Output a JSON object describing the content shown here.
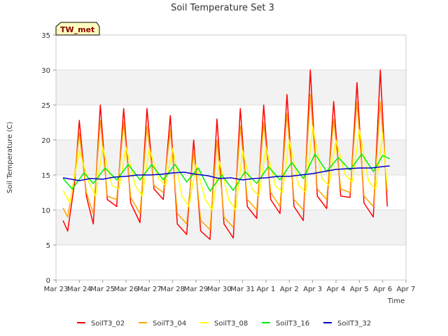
{
  "chart_data": {
    "type": "line",
    "title": "Soil Temperature Set 3",
    "xlabel": "Time",
    "ylabel": "Soil Temperature (C)",
    "ylim": [
      0,
      35
    ],
    "yticks": [
      0,
      5,
      10,
      15,
      20,
      25,
      30,
      35
    ],
    "xlim": [
      0,
      15
    ],
    "xticks": [
      {
        "x": 0,
        "label": "Mar 23"
      },
      {
        "x": 1,
        "label": "Mar 24"
      },
      {
        "x": 2,
        "label": "Mar 25"
      },
      {
        "x": 3,
        "label": "Mar 26"
      },
      {
        "x": 4,
        "label": "Mar 27"
      },
      {
        "x": 5,
        "label": "Mar 28"
      },
      {
        "x": 6,
        "label": "Mar 29"
      },
      {
        "x": 7,
        "label": "Mar 30"
      },
      {
        "x": 8,
        "label": "Mar 31"
      },
      {
        "x": 9,
        "label": "Apr 1"
      },
      {
        "x": 10,
        "label": "Apr 2"
      },
      {
        "x": 11,
        "label": "Apr 3"
      },
      {
        "x": 12,
        "label": "Apr 4"
      },
      {
        "x": 13,
        "label": "Apr 5"
      },
      {
        "x": 14,
        "label": "Apr 6"
      },
      {
        "x": 15,
        "label": "Apr 7"
      }
    ],
    "grid": "horizontal bands",
    "legend_position": "bottom",
    "annotation": "TW_met",
    "series": [
      {
        "name": "SoilT3_02",
        "color": "#ff0000",
        "x": [
          0.3,
          0.5,
          0.8,
          1.0,
          1.3,
          1.6,
          1.9,
          2.2,
          2.6,
          2.9,
          3.2,
          3.6,
          3.9,
          4.2,
          4.6,
          4.9,
          5.2,
          5.6,
          5.9,
          6.2,
          6.6,
          6.9,
          7.2,
          7.6,
          7.9,
          8.2,
          8.6,
          8.9,
          9.2,
          9.6,
          9.9,
          10.2,
          10.6,
          10.9,
          11.2,
          11.6,
          11.9,
          12.2,
          12.6,
          12.9,
          13.2,
          13.6,
          13.9,
          14.2
        ],
        "y": [
          8.5,
          7.0,
          14.0,
          22.8,
          12.0,
          8.0,
          25.0,
          11.5,
          10.5,
          24.5,
          11.0,
          8.2,
          24.5,
          13.0,
          11.5,
          23.5,
          8.0,
          6.5,
          20.0,
          7.0,
          5.8,
          23.0,
          8.0,
          6.0,
          24.5,
          10.5,
          8.8,
          25.0,
          11.5,
          9.5,
          26.5,
          10.5,
          8.5,
          30.0,
          12.0,
          10.2,
          25.5,
          12.0,
          11.8,
          28.2,
          11.0,
          9.0,
          30.0,
          10.5
        ]
      },
      {
        "name": "SoilT3_04",
        "color": "#ffa500",
        "x": [
          0.3,
          0.5,
          0.8,
          1.0,
          1.3,
          1.6,
          1.9,
          2.2,
          2.6,
          2.9,
          3.2,
          3.6,
          3.9,
          4.2,
          4.6,
          4.9,
          5.2,
          5.6,
          5.9,
          6.2,
          6.6,
          6.9,
          7.2,
          7.6,
          7.9,
          8.2,
          8.6,
          8.9,
          9.2,
          9.6,
          9.9,
          10.2,
          10.6,
          10.9,
          11.2,
          11.6,
          11.9,
          12.2,
          12.6,
          12.9,
          13.2,
          13.6,
          13.9,
          14.2
        ],
        "y": [
          10.3,
          9.0,
          15.0,
          21.0,
          12.5,
          9.5,
          22.8,
          12.0,
          11.5,
          22.5,
          11.8,
          9.5,
          22.0,
          13.5,
          12.5,
          21.5,
          9.5,
          8.0,
          18.5,
          8.5,
          7.2,
          20.0,
          9.0,
          7.5,
          22.0,
          11.5,
          10.0,
          22.5,
          12.5,
          10.5,
          23.8,
          11.5,
          10.0,
          26.5,
          13.0,
          11.5,
          23.0,
          13.0,
          12.5,
          25.5,
          12.0,
          10.5,
          25.5,
          12.5
        ]
      },
      {
        "name": "SoilT3_08",
        "color": "#ffff00",
        "x": [
          0.3,
          0.6,
          1.0,
          1.4,
          1.7,
          2.0,
          2.4,
          2.7,
          3.0,
          3.4,
          3.7,
          4.0,
          4.4,
          4.7,
          5.0,
          5.4,
          5.7,
          6.0,
          6.4,
          6.7,
          7.0,
          7.4,
          7.7,
          8.0,
          8.4,
          8.7,
          9.0,
          9.4,
          9.7,
          10.0,
          10.4,
          10.7,
          11.0,
          11.4,
          11.7,
          12.0,
          12.4,
          12.7,
          13.0,
          13.4,
          13.7,
          14.0,
          14.2
        ],
        "y": [
          12.8,
          11.0,
          18.5,
          14.0,
          12.0,
          19.0,
          13.5,
          13.0,
          19.0,
          13.5,
          12.0,
          18.8,
          14.5,
          13.5,
          18.8,
          12.0,
          10.5,
          16.5,
          11.5,
          10.0,
          17.0,
          11.5,
          10.0,
          18.5,
          13.0,
          12.0,
          19.0,
          13.5,
          12.5,
          20.0,
          13.5,
          12.5,
          22.0,
          14.5,
          13.5,
          20.0,
          15.0,
          14.0,
          21.5,
          14.0,
          13.0,
          21.0,
          13.0
        ]
      },
      {
        "name": "SoilT3_16",
        "color": "#00ee00",
        "x": [
          0.3,
          0.7,
          1.2,
          1.6,
          2.1,
          2.6,
          3.1,
          3.6,
          4.1,
          4.6,
          5.1,
          5.6,
          6.1,
          6.6,
          7.1,
          7.6,
          8.1,
          8.6,
          9.1,
          9.6,
          10.1,
          10.6,
          11.1,
          11.6,
          12.1,
          12.6,
          13.1,
          13.6,
          14.0,
          14.3
        ],
        "y": [
          14.5,
          13.0,
          15.3,
          13.8,
          16.0,
          14.3,
          16.5,
          14.3,
          16.5,
          14.3,
          16.5,
          14.0,
          16.0,
          12.7,
          15.0,
          12.8,
          15.5,
          13.8,
          16.2,
          14.3,
          16.8,
          14.5,
          18.0,
          15.5,
          17.5,
          15.7,
          18.0,
          15.5,
          17.8,
          17.3
        ]
      },
      {
        "name": "SoilT3_32",
        "color": "#0000cc",
        "x": [
          0.3,
          1.0,
          1.5,
          2.0,
          2.5,
          3.0,
          3.5,
          4.0,
          4.5,
          5.0,
          5.5,
          6.0,
          6.5,
          7.0,
          7.5,
          8.0,
          8.5,
          9.0,
          9.5,
          10.0,
          10.5,
          11.0,
          11.5,
          12.0,
          12.5,
          13.0,
          13.5,
          14.0,
          14.3
        ],
        "y": [
          14.6,
          14.2,
          14.5,
          14.4,
          14.7,
          14.8,
          15.0,
          15.0,
          15.1,
          15.3,
          15.4,
          15.1,
          14.9,
          14.5,
          14.6,
          14.3,
          14.5,
          14.6,
          14.8,
          14.8,
          15.0,
          15.2,
          15.5,
          15.8,
          15.9,
          16.0,
          16.0,
          16.2,
          16.3
        ]
      }
    ]
  }
}
